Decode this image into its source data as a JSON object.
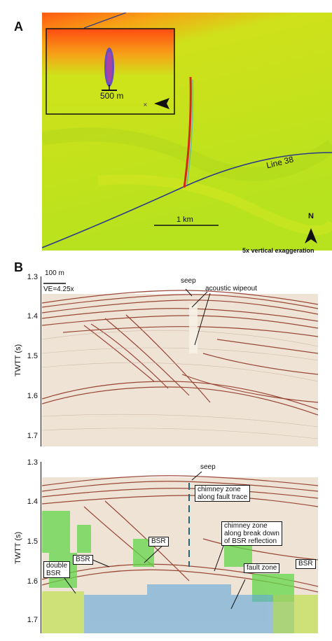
{
  "panel_a": {
    "letter": "A",
    "inset_scale": "500 m",
    "line_label": "Line 38",
    "scale_label": "1 km",
    "north_label": "N",
    "note": "5x vertical exaggeration",
    "colors": {
      "ridge": "#ff6a12",
      "plain": "#b9e01c",
      "line": "#2b3a8a",
      "seep": "#d62a12"
    }
  },
  "panel_b": {
    "letter": "B",
    "ylabel": "TWTT (s)",
    "ticks": [
      "1.3",
      "1.4",
      "1.5",
      "1.6",
      "1.7"
    ],
    "upper": {
      "scale": "100 m",
      "ve": "VE=4.25x",
      "seep": "seep",
      "wipeout": "acoustic wipeout"
    },
    "lower": {
      "seep": "seep",
      "chimney1": [
        "chimney zone",
        "along fault trace"
      ],
      "chimney2": [
        "chimney zone",
        "along break down",
        "of BSR reflection"
      ],
      "bsr": "BSR",
      "double_bsr": [
        "double",
        "BSR"
      ],
      "fault_zone": "fault zone"
    }
  }
}
